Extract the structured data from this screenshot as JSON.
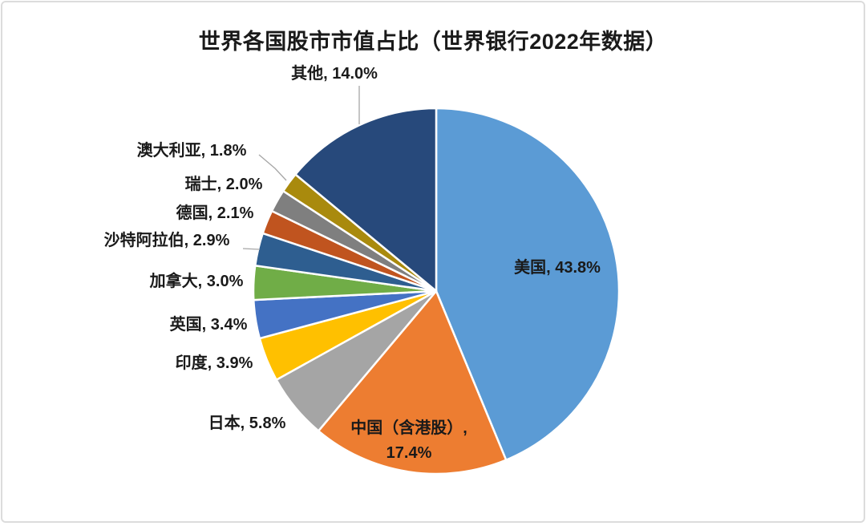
{
  "page": {
    "background_color": "#FFFFFF",
    "frame_border_color": "#DCDCDC"
  },
  "chart_data": {
    "type": "pie",
    "title": "世界各国股市市值占比（世界银行2022年数据）",
    "unit": "%",
    "legend_position": "none",
    "label_format": "category, value%",
    "direction": "clockwise",
    "start_angle_deg": 0,
    "slice_border_color": "#FFFFFF",
    "leader_line_color": "#A6A6A6",
    "slices": [
      {
        "id": "usa",
        "name": "美国",
        "value": 43.8,
        "label": "美国, 43.8%",
        "color": "#5B9BD5"
      },
      {
        "id": "china",
        "name": "中国（含港股）",
        "value": 17.4,
        "label": "中国（含港股）, 17.4%",
        "color": "#ED7D31"
      },
      {
        "id": "japan",
        "name": "日本",
        "value": 5.8,
        "label": "日本, 5.8%",
        "color": "#A5A5A5"
      },
      {
        "id": "india",
        "name": "印度",
        "value": 3.9,
        "label": "印度, 3.9%",
        "color": "#FFC000"
      },
      {
        "id": "uk",
        "name": "英国",
        "value": 3.4,
        "label": "英国, 3.4%",
        "color": "#4472C4"
      },
      {
        "id": "canada",
        "name": "加拿大",
        "value": 3.0,
        "label": "加拿大, 3.0%",
        "color": "#70AD47"
      },
      {
        "id": "saudi-arabia",
        "name": "沙特阿拉伯",
        "value": 2.9,
        "label": "沙特阿拉伯, 2.9%",
        "color": "#2E5E90"
      },
      {
        "id": "germany",
        "name": "德国",
        "value": 2.1,
        "label": "德国, 2.1%",
        "color": "#C0541F"
      },
      {
        "id": "switzerland",
        "name": "瑞士",
        "value": 2.0,
        "label": "瑞士, 2.0%",
        "color": "#7F7F7F"
      },
      {
        "id": "australia",
        "name": "澳大利亚",
        "value": 1.8,
        "label": "澳大利亚, 1.8%",
        "color": "#A98A0D"
      },
      {
        "id": "other",
        "name": "其他",
        "value": 14.0,
        "label": "其他, 14.0%",
        "color": "#27497B"
      }
    ]
  }
}
